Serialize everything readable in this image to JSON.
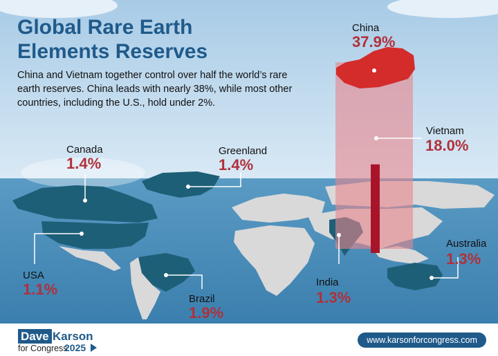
{
  "header": {
    "title": "Global Rare Earth Elements Reserves",
    "subtitle": "China and Vietnam together control over half the world’s rare earth reserves. China leads with nearly 38%, while most other countries, including the U.S., hold under 2%."
  },
  "chart_data": {
    "type": "bar",
    "unit": "%",
    "categories": [
      "China",
      "Vietnam",
      "Brazil",
      "Canada",
      "Greenland",
      "India",
      "Australia",
      "USA"
    ],
    "values": [
      37.9,
      18.0,
      1.9,
      1.4,
      1.4,
      1.3,
      1.3,
      1.1
    ],
    "value_labels": [
      "37.9%",
      "18.0%",
      "1.9%",
      "1.4%",
      "1.4%",
      "1.3%",
      "1.3%",
      "1.1%"
    ]
  },
  "colors": {
    "title": "#1f5a8a",
    "value_red": "#b0303a",
    "china_fill": "#d42b2b",
    "bar_fill": "#e8868c",
    "vietnam_bar": "#a8152a",
    "highlight_land": "#1e5f78",
    "other_land": "#d9d9d9",
    "brand": "#1f5a8a"
  },
  "footer": {
    "logo_first": "Dave",
    "logo_last": "Karson",
    "logo_sub": "for Congress",
    "logo_year": "2025",
    "url": "www.karsonforcongress.com"
  }
}
